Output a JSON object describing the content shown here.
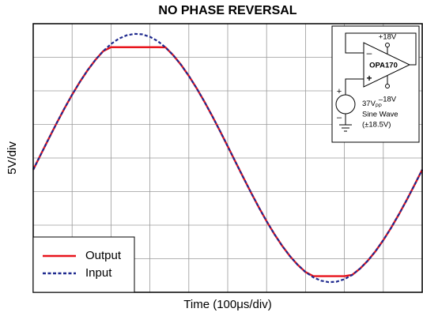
{
  "chart_data": {
    "type": "line",
    "title": "NO PHASE REVERSAL",
    "x_label": "Time (100μs/div)",
    "y_label": "5V/div",
    "x": [
      0,
      20,
      40,
      60,
      80,
      100,
      120,
      140,
      160,
      180,
      200,
      220,
      240,
      260,
      280,
      300,
      320,
      340,
      360,
      380,
      400,
      420,
      440,
      460,
      480,
      500,
      520,
      540,
      560,
      580,
      600,
      620,
      640,
      660,
      680,
      700,
      720,
      740,
      760,
      780,
      800,
      820,
      840,
      860,
      880,
      900,
      920,
      940,
      960,
      980,
      1000
    ],
    "series": [
      {
        "name": "Output",
        "color": "#e8141c",
        "dash": false,
        "values": [
          -1.74,
          0.58,
          2.89,
          5.16,
          7.35,
          9.42,
          11.34,
          13.08,
          14.62,
          15.92,
          16.5,
          16.5,
          16.5,
          16.5,
          16.5,
          16.5,
          16.5,
          16.48,
          15.3,
          13.88,
          12.23,
          10.4,
          8.4,
          6.27,
          4.04,
          1.74,
          -0.58,
          -2.89,
          -5.16,
          -7.35,
          -9.42,
          -11.34,
          -13.08,
          -14.62,
          -15.92,
          -16.98,
          -17.6,
          -17.6,
          -17.6,
          -17.6,
          -17.6,
          -17.41,
          -16.48,
          -15.3,
          -13.88,
          -12.23,
          -10.4,
          -8.4,
          -6.27,
          -4.04,
          -1.74
        ]
      },
      {
        "name": "Input",
        "color": "#1f2a8f",
        "dash": true,
        "values": [
          -1.74,
          0.58,
          2.89,
          5.16,
          7.35,
          9.42,
          11.34,
          13.08,
          14.62,
          15.92,
          16.98,
          17.77,
          18.27,
          18.49,
          18.42,
          18.05,
          17.41,
          16.48,
          15.3,
          13.88,
          12.23,
          10.4,
          8.4,
          6.27,
          4.04,
          1.74,
          -0.58,
          -2.89,
          -5.16,
          -7.35,
          -9.42,
          -11.34,
          -13.08,
          -14.62,
          -15.92,
          -16.98,
          -17.77,
          -18.27,
          -18.49,
          -18.42,
          -18.05,
          -17.41,
          -16.48,
          -15.3,
          -13.88,
          -12.23,
          -10.4,
          -8.4,
          -6.27,
          -4.04,
          -1.74
        ]
      }
    ],
    "xlim": [
      0,
      1000
    ],
    "ylim": [
      -20,
      20
    ],
    "xticks": [
      0,
      100,
      200,
      300,
      400,
      500,
      600,
      700,
      800,
      900,
      1000
    ],
    "yticks": [
      -20,
      -15,
      -10,
      -5,
      0,
      5,
      10,
      15,
      20
    ],
    "grid": true,
    "tick_labels": false,
    "legend": "lower left",
    "inset": {
      "opamp": "OPA170",
      "supply_pos": "+18V",
      "supply_neg": "–18V",
      "inverting": "–",
      "noninverting": "+",
      "source_plus": "+",
      "source_minus": "–",
      "source_amp": "37V",
      "source_amp_sub": "PP",
      "source_type": "Sine Wave",
      "source_range": "(±18.5V)"
    }
  }
}
